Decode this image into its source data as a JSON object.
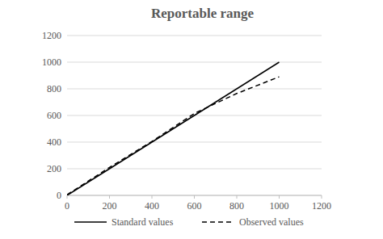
{
  "chart_data": {
    "type": "line",
    "title": "Reportable range",
    "x": [
      0,
      200,
      400,
      600,
      800,
      1000
    ],
    "series": [
      {
        "name": "Standard values",
        "color": "#000000",
        "line_style": "solid",
        "values": [
          0,
          200,
          400,
          600,
          800,
          1000
        ]
      },
      {
        "name": "Observed values",
        "color": "#000000",
        "line_style": "dashed",
        "values": [
          5,
          210,
          405,
          615,
          765,
          890
        ]
      }
    ],
    "xlim": [
      0,
      1200
    ],
    "xticks": [
      0,
      200,
      400,
      600,
      800,
      1000,
      1200
    ],
    "ylim": [
      0,
      1200
    ],
    "yticks": [
      0,
      200,
      400,
      600,
      800,
      1000,
      1200
    ],
    "grid": true,
    "legend": "bottom"
  }
}
